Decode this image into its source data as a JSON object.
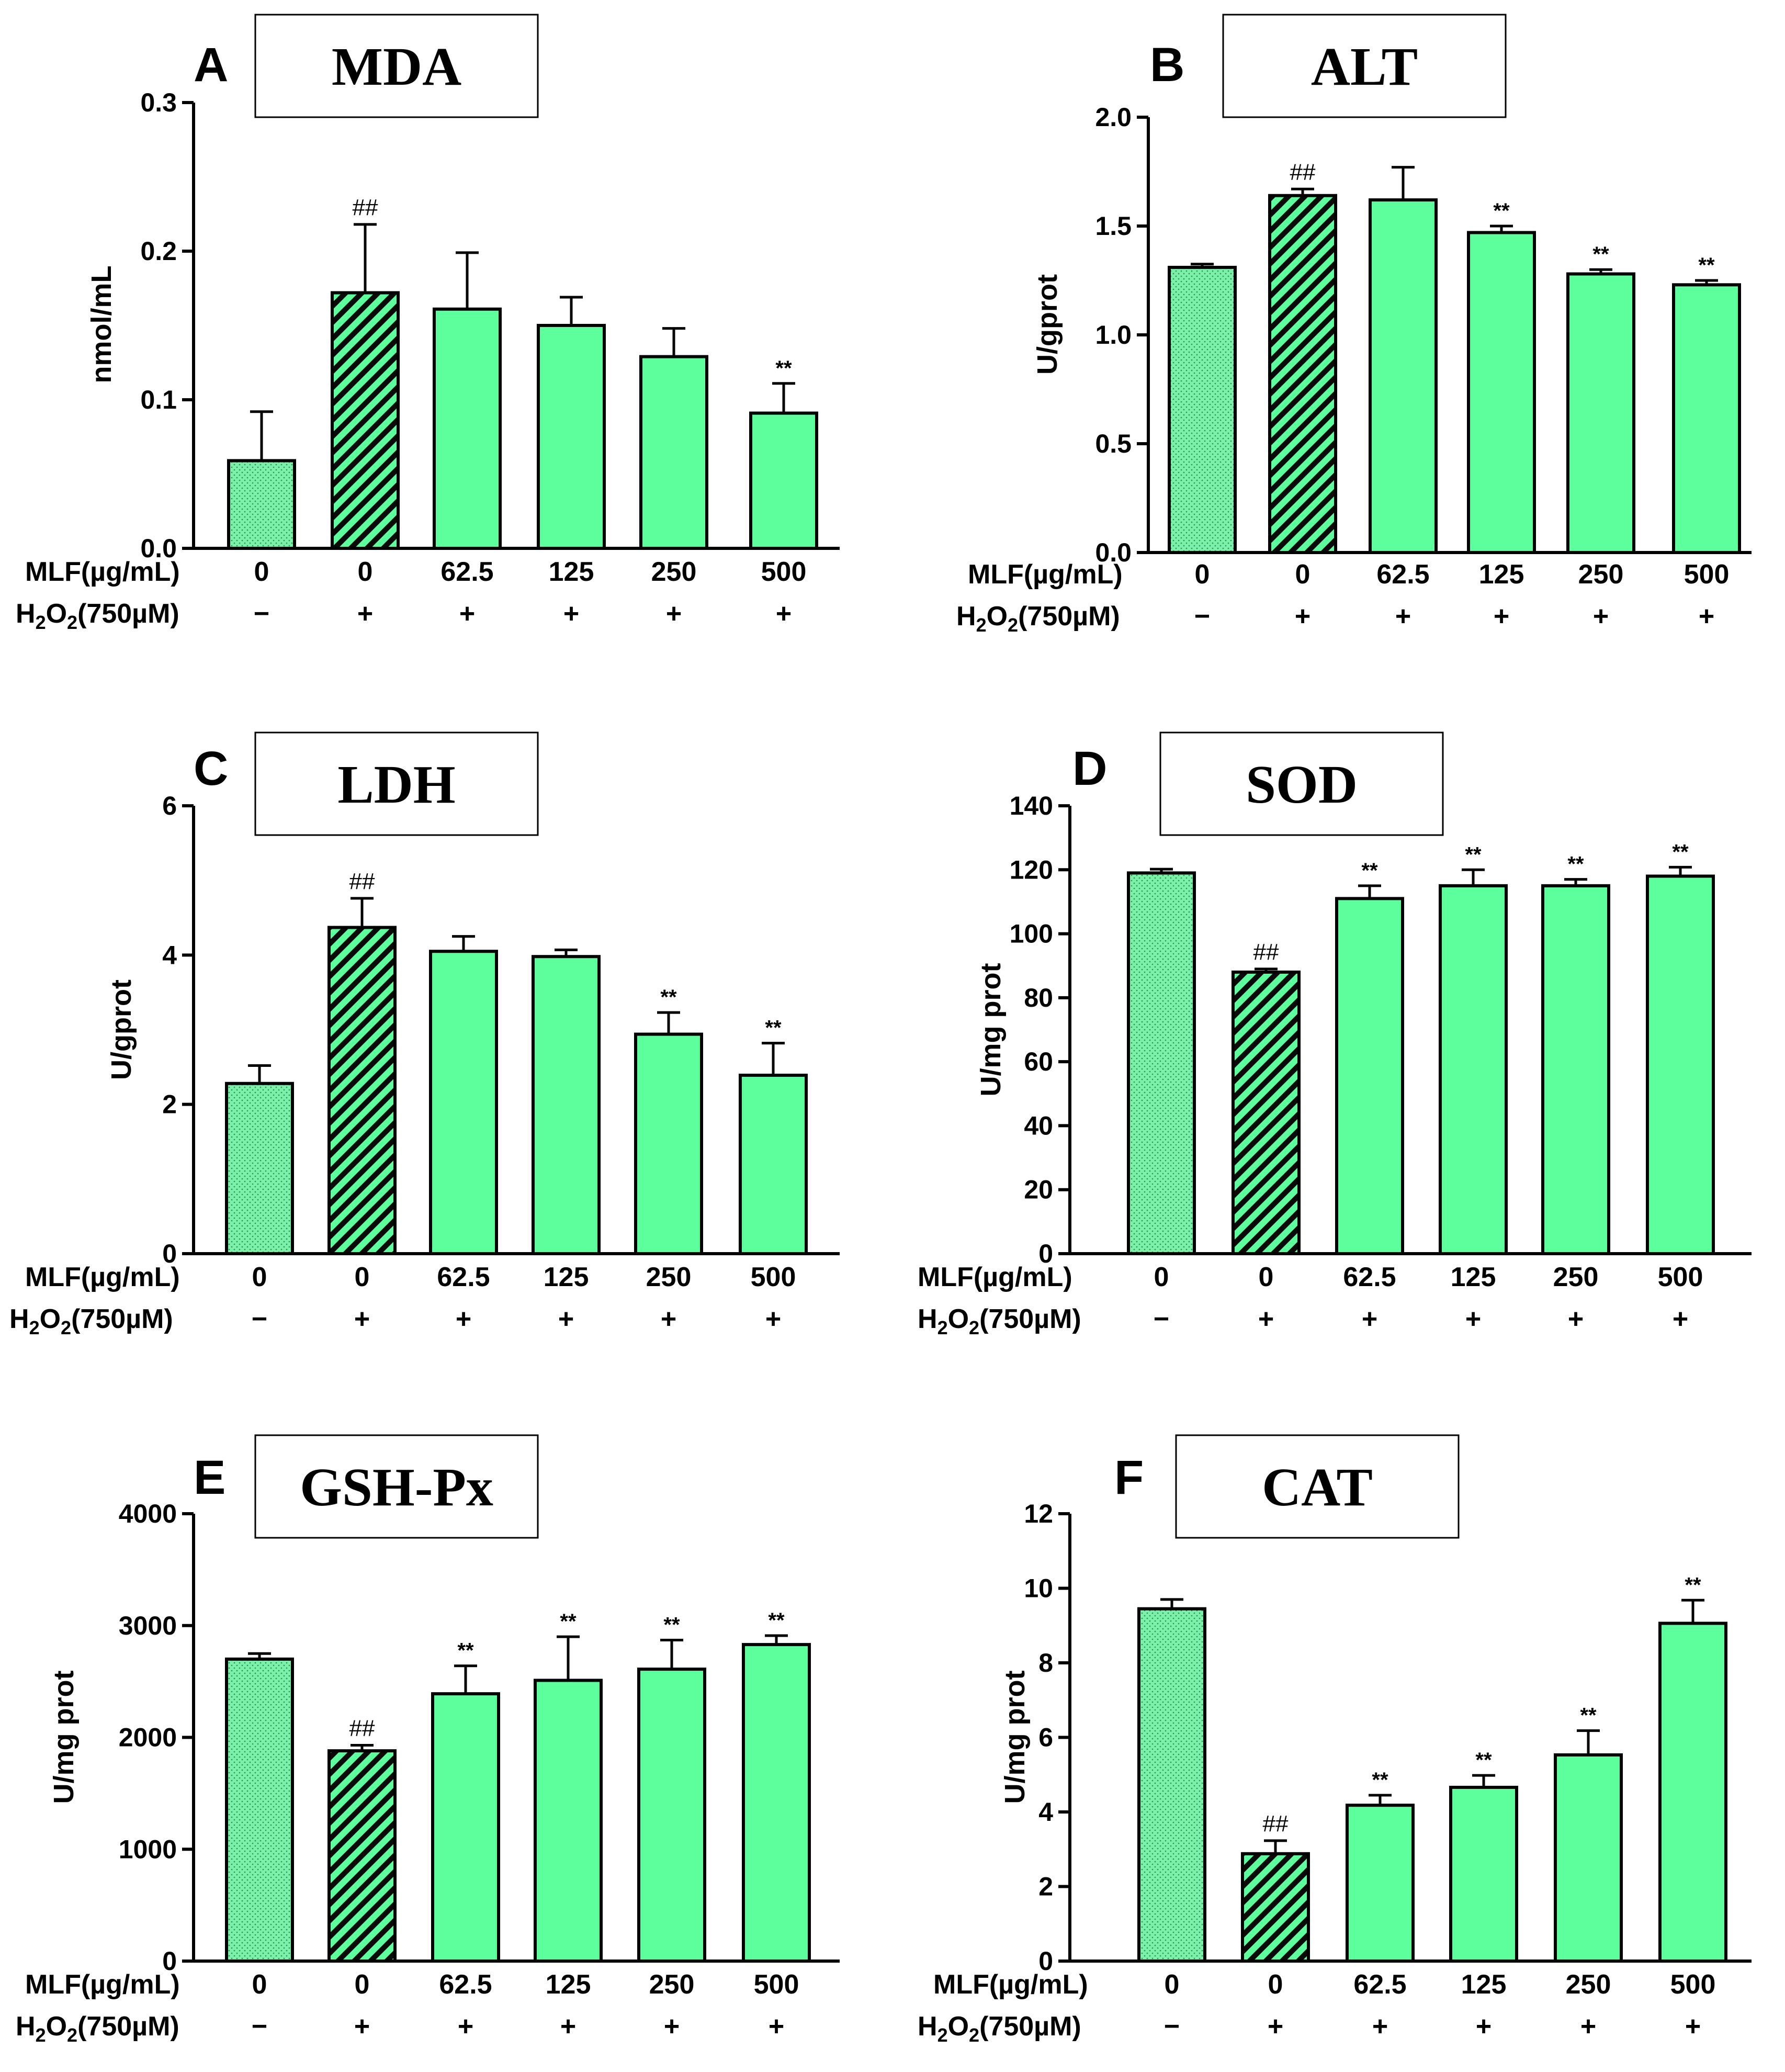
{
  "colors": {
    "bar_fill": "#5CFF9C",
    "dotted_fill": "#7AF0A8",
    "stroke": "#000000"
  },
  "row_labels": {
    "mlf": "MLF(µg/mL)",
    "h2o2_prefix": "H",
    "h2o2_sub1": "2",
    "h2o2_mid": "O",
    "h2o2_sub2": "2",
    "h2o2_suffix": "(750µM)"
  },
  "chart_data": [
    {
      "type": "bar",
      "panel": "A",
      "title": "MDA",
      "ylabel": "nmol/mL",
      "ylim": [
        0,
        0.3
      ],
      "yticks": [
        "0.0",
        "0.1",
        "0.2",
        "0.3"
      ],
      "categories": [
        "0",
        "0",
        "62.5",
        "125",
        "250",
        "500"
      ],
      "h2o2": [
        "-",
        "+",
        "+",
        "+",
        "+",
        "+"
      ],
      "values": [
        0.059,
        0.172,
        0.161,
        0.15,
        0.129,
        0.091
      ],
      "errors": [
        0.033,
        0.046,
        0.038,
        0.019,
        0.019,
        0.02
      ],
      "significance": [
        "",
        "##",
        "",
        "",
        "",
        "**"
      ],
      "patterns": [
        "dots",
        "hatch",
        "solid",
        "solid",
        "solid",
        "solid"
      ]
    },
    {
      "type": "bar",
      "panel": "B",
      "title": "ALT",
      "ylabel": "U/gprot",
      "ylim": [
        0,
        2.0
      ],
      "yticks": [
        "0.0",
        "0.5",
        "1.0",
        "1.5",
        "2.0"
      ],
      "categories": [
        "0",
        "0",
        "62.5",
        "125",
        "250",
        "500"
      ],
      "h2o2": [
        "-",
        "+",
        "+",
        "+",
        "+",
        "+"
      ],
      "values": [
        1.31,
        1.64,
        1.62,
        1.47,
        1.28,
        1.23
      ],
      "errors": [
        0.015,
        0.03,
        0.15,
        0.03,
        0.02,
        0.02
      ],
      "significance": [
        "",
        "##",
        "",
        "**",
        "**",
        "**"
      ],
      "patterns": [
        "dots",
        "hatch",
        "solid",
        "solid",
        "solid",
        "solid"
      ]
    },
    {
      "type": "bar",
      "panel": "C",
      "title": "LDH",
      "ylabel": "U/gprot",
      "ylim": [
        0,
        6
      ],
      "yticks": [
        "0",
        "2",
        "4",
        "6"
      ],
      "categories": [
        "0",
        "0",
        "62.5",
        "125",
        "250",
        "500"
      ],
      "h2o2": [
        "-",
        "+",
        "+",
        "+",
        "+",
        "+"
      ],
      "values": [
        2.28,
        4.37,
        4.05,
        3.98,
        2.94,
        2.39
      ],
      "errors": [
        0.24,
        0.39,
        0.2,
        0.09,
        0.29,
        0.43
      ],
      "significance": [
        "",
        "##",
        "",
        "",
        "**",
        "**"
      ],
      "patterns": [
        "dots",
        "hatch",
        "solid",
        "solid",
        "solid",
        "solid"
      ]
    },
    {
      "type": "bar",
      "panel": "D",
      "title": "SOD",
      "ylabel": "U/mg prot",
      "ylim": [
        0,
        140
      ],
      "yticks": [
        "0",
        "20",
        "40",
        "60",
        "80",
        "100",
        "120",
        "140"
      ],
      "categories": [
        "0",
        "0",
        "62.5",
        "125",
        "250",
        "500"
      ],
      "h2o2": [
        "-",
        "+",
        "+",
        "+",
        "+",
        "+"
      ],
      "values": [
        119,
        88,
        111,
        115,
        115,
        118
      ],
      "errors": [
        1.2,
        1.0,
        4.0,
        5.0,
        2.0,
        2.8
      ],
      "significance": [
        "",
        "##",
        "**",
        "**",
        "**",
        "**"
      ],
      "patterns": [
        "dots",
        "hatch",
        "solid",
        "solid",
        "solid",
        "solid"
      ]
    },
    {
      "type": "bar",
      "panel": "E",
      "title": "GSH-Px",
      "ylabel": "U/mg prot",
      "ylim": [
        0,
        4000
      ],
      "yticks": [
        "0",
        "1000",
        "2000",
        "3000",
        "4000"
      ],
      "categories": [
        "0",
        "0",
        "62.5",
        "125",
        "250",
        "500"
      ],
      "h2o2": [
        "-",
        "+",
        "+",
        "+",
        "+",
        "+"
      ],
      "values": [
        2700,
        1880,
        2390,
        2510,
        2610,
        2830
      ],
      "errors": [
        50,
        50,
        250,
        390,
        260,
        80
      ],
      "significance": [
        "",
        "##",
        "**",
        "**",
        "**",
        "**"
      ],
      "patterns": [
        "dots",
        "hatch",
        "solid",
        "solid",
        "solid",
        "solid"
      ]
    },
    {
      "type": "bar",
      "panel": "F",
      "title": "CAT",
      "ylabel": "U/mg prot",
      "ylim": [
        0,
        12
      ],
      "yticks": [
        "0",
        "2",
        "4",
        "6",
        "8",
        "10",
        "12"
      ],
      "categories": [
        "0",
        "0",
        "62.5",
        "125",
        "250",
        "500"
      ],
      "h2o2": [
        "-",
        "+",
        "+",
        "+",
        "+",
        "+"
      ],
      "values": [
        9.45,
        2.88,
        4.18,
        4.66,
        5.53,
        9.06
      ],
      "errors": [
        0.25,
        0.35,
        0.27,
        0.32,
        0.65,
        0.62
      ],
      "significance": [
        "",
        "##",
        "**",
        "**",
        "**",
        "**"
      ],
      "patterns": [
        "dots",
        "hatch",
        "solid",
        "solid",
        "solid",
        "solid"
      ]
    }
  ]
}
